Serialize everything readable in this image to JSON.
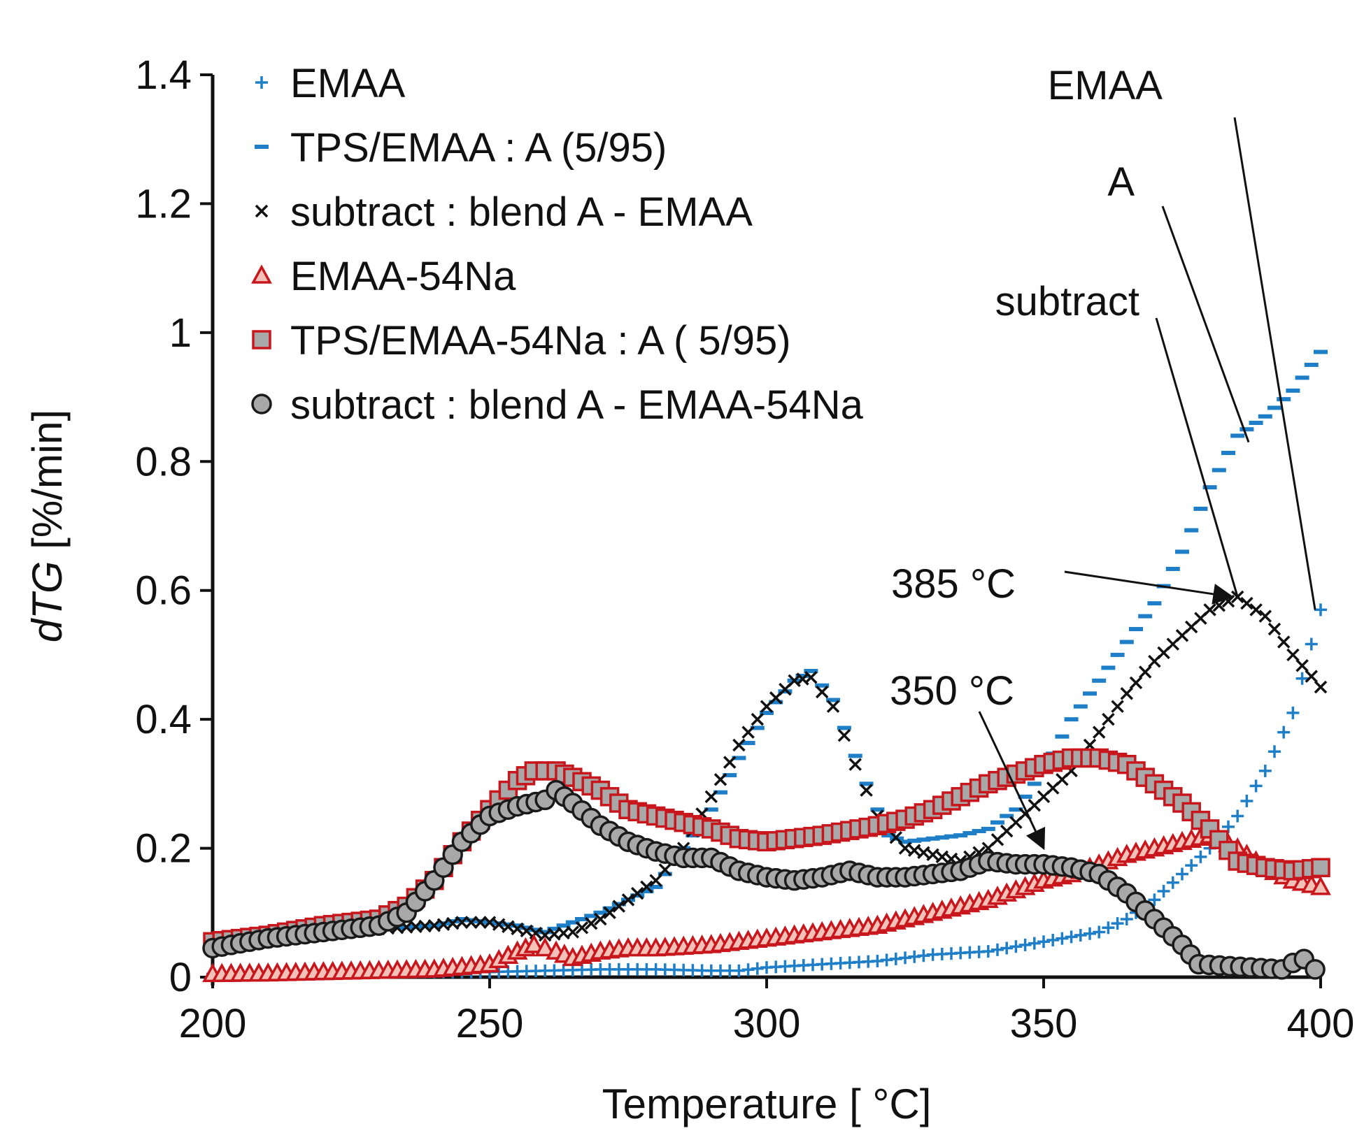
{
  "chart_data": {
    "type": "scatter",
    "title": "",
    "xlabel": "Temperature [ °C]",
    "ylabel_italic": "dTG",
    "ylabel_rest": " [%/min]",
    "xlim": [
      200,
      400
    ],
    "ylim": [
      0,
      1.4
    ],
    "xticks": [
      200,
      250,
      300,
      350,
      400
    ],
    "yticks": [
      0,
      0.2,
      0.4,
      0.6,
      0.8,
      1,
      1.2,
      1.4
    ],
    "xtick_labels": [
      "200",
      "250",
      "300",
      "350",
      "400"
    ],
    "ytick_labels": [
      "0",
      "0.2",
      "0.4",
      "0.6",
      "0.8",
      "1",
      "1.2",
      "1.4"
    ],
    "grid": false,
    "legend_position": "top-left",
    "series": [
      {
        "name": "EMAA",
        "marker": "plus",
        "color": "#1e7fc8",
        "x": [
          200,
          210,
          220,
          230,
          240,
          250,
          260,
          270,
          280,
          290,
          295,
          300,
          310,
          320,
          330,
          340,
          350,
          360,
          365,
          370,
          375,
          380,
          385,
          390,
          395,
          400
        ],
        "y": [
          0.005,
          0.008,
          0.01,
          0.01,
          0.008,
          0.008,
          0.01,
          0.012,
          0.012,
          0.01,
          0.01,
          0.015,
          0.02,
          0.025,
          0.035,
          0.04,
          0.055,
          0.07,
          0.09,
          0.12,
          0.16,
          0.2,
          0.25,
          0.32,
          0.41,
          0.57
        ]
      },
      {
        "name": "TPS/EMAA : A (5/95)",
        "marker": "dash",
        "color": "#1e7fc8",
        "x": [
          200,
          210,
          220,
          230,
          240,
          245,
          250,
          255,
          260,
          270,
          280,
          285,
          290,
          295,
          300,
          305,
          308,
          312,
          318,
          322,
          325,
          330,
          335,
          340,
          345,
          350,
          355,
          360,
          365,
          370,
          375,
          380,
          385,
          390,
          395,
          400
        ],
        "y": [
          0.06,
          0.07,
          0.075,
          0.075,
          0.08,
          0.09,
          0.085,
          0.08,
          0.07,
          0.1,
          0.14,
          0.2,
          0.26,
          0.34,
          0.41,
          0.46,
          0.475,
          0.43,
          0.3,
          0.22,
          0.21,
          0.215,
          0.22,
          0.23,
          0.26,
          0.32,
          0.4,
          0.46,
          0.52,
          0.58,
          0.66,
          0.76,
          0.84,
          0.87,
          0.91,
          0.97
        ]
      },
      {
        "name": "subtract : blend A - EMAA",
        "marker": "x",
        "color": "#111111",
        "x": [
          200,
          210,
          220,
          230,
          240,
          245,
          250,
          255,
          260,
          265,
          270,
          275,
          280,
          285,
          290,
          295,
          300,
          305,
          308,
          312,
          316,
          320,
          325,
          330,
          335,
          340,
          345,
          350,
          355,
          360,
          365,
          370,
          375,
          380,
          385,
          390,
          395,
          400
        ],
        "y": [
          0.055,
          0.062,
          0.07,
          0.075,
          0.08,
          0.085,
          0.085,
          0.075,
          0.065,
          0.07,
          0.09,
          0.12,
          0.15,
          0.2,
          0.28,
          0.36,
          0.42,
          0.46,
          0.465,
          0.42,
          0.33,
          0.25,
          0.2,
          0.19,
          0.18,
          0.2,
          0.24,
          0.28,
          0.32,
          0.38,
          0.44,
          0.49,
          0.53,
          0.57,
          0.59,
          0.56,
          0.5,
          0.45
        ]
      },
      {
        "name": "EMAA-54Na",
        "marker": "triangle",
        "color": "#c8161d",
        "x": [
          200,
          210,
          220,
          230,
          240,
          250,
          255,
          258,
          262,
          265,
          270,
          275,
          280,
          290,
          300,
          310,
          320,
          330,
          340,
          350,
          355,
          360,
          365,
          370,
          375,
          380,
          385,
          390,
          395,
          400
        ],
        "y": [
          0.005,
          0.006,
          0.008,
          0.01,
          0.012,
          0.02,
          0.04,
          0.05,
          0.04,
          0.03,
          0.04,
          0.045,
          0.045,
          0.05,
          0.06,
          0.07,
          0.08,
          0.1,
          0.12,
          0.15,
          0.16,
          0.175,
          0.19,
          0.2,
          0.21,
          0.22,
          0.2,
          0.17,
          0.15,
          0.14
        ]
      },
      {
        "name": "TPS/EMAA-54Na : A ( 5/95)",
        "marker": "square",
        "color": "#c8161d",
        "fill": "#a8a8a8",
        "x": [
          200,
          210,
          220,
          230,
          235,
          240,
          245,
          250,
          255,
          258,
          262,
          265,
          270,
          275,
          280,
          285,
          290,
          295,
          300,
          305,
          310,
          320,
          325,
          330,
          335,
          340,
          345,
          350,
          355,
          360,
          365,
          370,
          375,
          380,
          385,
          390,
          395,
          400
        ],
        "y": [
          0.055,
          0.065,
          0.08,
          0.09,
          0.11,
          0.15,
          0.21,
          0.26,
          0.305,
          0.32,
          0.32,
          0.31,
          0.29,
          0.26,
          0.25,
          0.24,
          0.23,
          0.215,
          0.21,
          0.215,
          0.22,
          0.235,
          0.245,
          0.26,
          0.28,
          0.3,
          0.315,
          0.33,
          0.34,
          0.34,
          0.33,
          0.3,
          0.27,
          0.23,
          0.18,
          0.17,
          0.165,
          0.17
        ]
      },
      {
        "name": "subtract : blend A - EMAA-54Na",
        "marker": "circle",
        "color": "#1a1a1a",
        "fill": "#a8a8a8",
        "x": [
          200,
          210,
          220,
          230,
          235,
          240,
          245,
          250,
          255,
          260,
          262,
          265,
          270,
          275,
          280,
          285,
          290,
          295,
          300,
          305,
          310,
          315,
          320,
          325,
          330,
          335,
          340,
          345,
          350,
          355,
          360,
          365,
          370,
          375,
          378,
          393,
          395,
          397,
          399
        ],
        "y": [
          0.045,
          0.06,
          0.07,
          0.08,
          0.1,
          0.15,
          0.21,
          0.25,
          0.265,
          0.275,
          0.29,
          0.27,
          0.235,
          0.21,
          0.195,
          0.185,
          0.185,
          0.165,
          0.155,
          0.15,
          0.155,
          0.165,
          0.155,
          0.155,
          0.16,
          0.165,
          0.18,
          0.175,
          0.175,
          0.17,
          0.16,
          0.13,
          0.09,
          0.05,
          0.02,
          0.012,
          0.022,
          0.028,
          0.012
        ]
      }
    ],
    "annotations": [
      {
        "text": "EMAA",
        "target": [
          399,
          0.57
        ]
      },
      {
        "text": "A",
        "target": [
          387,
          0.83
        ]
      },
      {
        "text": "subtract",
        "target": [
          385,
          0.59
        ]
      },
      {
        "text": "385 °C",
        "target": [
          384,
          0.59
        ]
      },
      {
        "text": "350 °C",
        "target": [
          350,
          0.2
        ]
      }
    ]
  }
}
